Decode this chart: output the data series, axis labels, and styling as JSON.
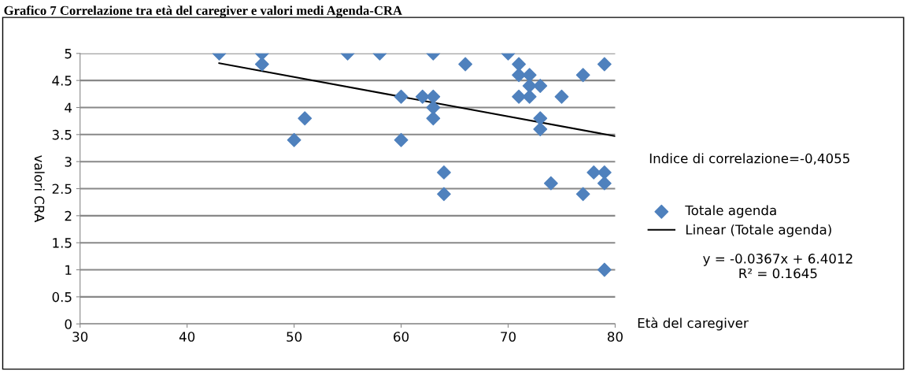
{
  "chart_data": {
    "type": "scatter",
    "title": "Grafico 7 Correlazione tra età del caregiver e valori medi Agenda-CRA",
    "xlabel": "Età del caregiver",
    "ylabel": "valori CRA",
    "xlim": [
      30,
      80
    ],
    "xticks": [
      30,
      40,
      50,
      60,
      70,
      80
    ],
    "ylim": [
      0,
      5
    ],
    "yticks": [
      0,
      0.5,
      1,
      1.5,
      2,
      2.5,
      3,
      3.5,
      4,
      4.5,
      5
    ],
    "grid": "y",
    "legend": "right",
    "marker": "diamond",
    "series": [
      {
        "name": "Totale agenda",
        "color": "#4f81bd",
        "x": [
          43,
          47,
          47,
          50,
          51,
          55,
          58,
          60,
          60,
          62,
          63,
          63,
          63,
          63,
          64,
          64,
          66,
          70,
          71,
          71,
          71,
          72,
          72,
          72,
          73,
          73,
          73,
          74,
          75,
          77,
          77,
          78,
          79,
          79,
          79,
          79
        ],
        "values": [
          5,
          5,
          4.8,
          3.4,
          3.8,
          5,
          5,
          4.2,
          3.4,
          4.2,
          5,
          4.2,
          4.0,
          3.8,
          2.8,
          2.4,
          4.8,
          5,
          4.8,
          4.6,
          4.2,
          4.6,
          4.4,
          4.2,
          4.4,
          3.8,
          3.6,
          2.6,
          4.2,
          4.6,
          2.4,
          2.8,
          4.8,
          2.8,
          2.6,
          1.0
        ]
      },
      {
        "name": "Linear (Totale agenda)",
        "type": "line",
        "color": "#000000",
        "marker": "none",
        "x": [
          43,
          80
        ],
        "values": [
          4.82,
          3.47
        ]
      }
    ],
    "annotations": [
      "Indice di correlazione=-0,4055",
      "y = -0.0367x + 6.4012\nR² = 0.1645"
    ]
  }
}
